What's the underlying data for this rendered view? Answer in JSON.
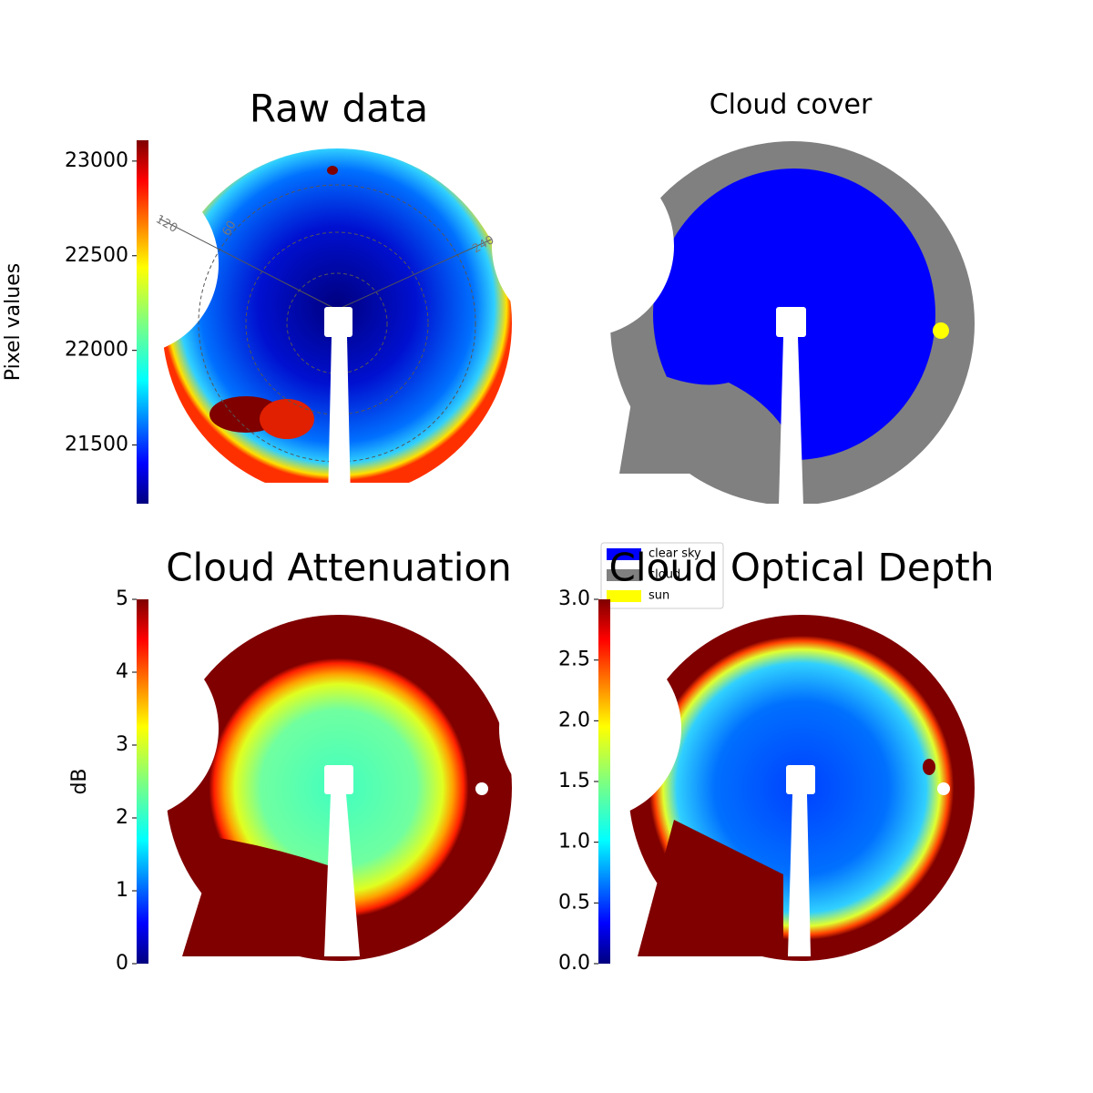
{
  "chart_data": [
    {
      "type": "image",
      "title": "Raw data",
      "colormap": "jet",
      "colorbar_label": "Pixel values",
      "clim": [
        21190,
        23110
      ],
      "cticks": [
        21500,
        22000,
        22500,
        23000
      ],
      "annotations": [
        "120",
        "60",
        "240"
      ]
    },
    {
      "type": "image",
      "title": "Cloud cover",
      "legend_items": [
        {
          "name": "clear sky",
          "color": "#0000ff"
        },
        {
          "name": "cloud",
          "color": "#808080"
        },
        {
          "name": "sun",
          "color": "#ffff00"
        }
      ]
    },
    {
      "type": "image",
      "title": "Cloud Attenuation",
      "colormap": "jet",
      "colorbar_label": "dB",
      "clim": [
        0,
        5
      ],
      "cticks": [
        0,
        1,
        2,
        3,
        4,
        5
      ]
    },
    {
      "type": "image",
      "title": "Cloud Optical Depth",
      "colormap": "jet",
      "clim": [
        0,
        3
      ],
      "cticks": [
        {
          "value": 0,
          "label": "0.0"
        },
        0.5,
        {
          "value": 1,
          "label": "1.0"
        },
        1.5,
        {
          "value": 2,
          "label": "2.0"
        },
        2.5,
        {
          "value": 3,
          "label": "3.0"
        }
      ]
    }
  ]
}
